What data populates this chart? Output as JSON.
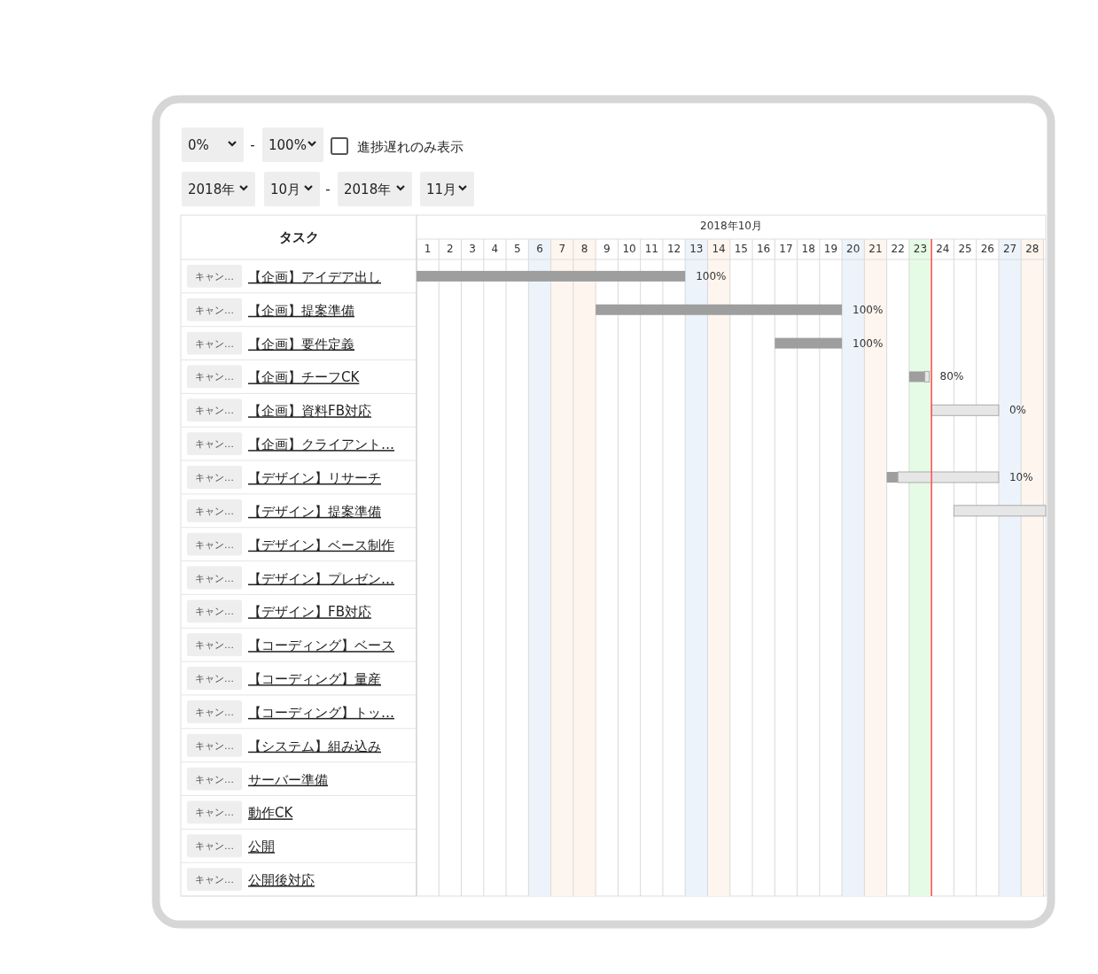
{
  "chart_data": {
    "type": "bar",
    "orientation": "horizontal",
    "ylabel": "タスク",
    "xlabel": "2018年10月",
    "categories": [
      "【企画】アイデア出し",
      "【企画】提案準備",
      "【企画】要件定義",
      "【企画】チーフCK",
      "【企画】資料FB対応",
      "【企画】クライアント…",
      "【デザイン】リサーチ",
      "【デザイン】提案準備",
      "【デザイン】ベース制作",
      "【デザイン】プレゼン…",
      "【デザイン】FB対応",
      "【コーディング】ベース",
      "【コーディング】量産",
      "【コーディング】トッ…",
      "【システム】組み込み",
      "サーバー準備",
      "動作CK",
      "公開",
      "公開後対応"
    ],
    "series": [
      {
        "color": "#9e9e9e",
        "base": [
          0.5,
          8.5,
          16.5,
          22.5,
          null,
          null,
          21.5,
          null,
          null,
          null,
          null,
          null,
          null,
          null,
          null,
          null,
          null,
          null,
          null
        ],
        "values": [
          12,
          11,
          3,
          0.7,
          null,
          null,
          0.5,
          null,
          null,
          null,
          null,
          null,
          null,
          null,
          null,
          null,
          null,
          null,
          null
        ]
      },
      {
        "color": "#e6e6e6",
        "base": [
          null,
          null,
          null,
          23.2,
          23.5,
          null,
          22,
          24.5,
          null,
          null,
          null,
          null,
          null,
          null,
          null,
          null,
          null,
          null,
          null
        ],
        "values": [
          null,
          null,
          null,
          0.2,
          3,
          null,
          4.5,
          4.1,
          null,
          null,
          null,
          null,
          null,
          null,
          null,
          null,
          null,
          null,
          null
        ]
      }
    ],
    "xlim": [
      0.5,
      28.6
    ],
    "xticks": [
      1,
      2,
      3,
      4,
      5,
      6,
      7,
      8,
      9,
      10,
      11,
      12,
      13,
      14,
      15,
      16,
      17,
      18,
      19,
      20,
      21,
      22,
      23,
      24,
      25,
      26,
      27,
      28
    ],
    "grid": "x",
    "bands": [
      {
        "axis": "x",
        "from": 5.5,
        "to": 6.5,
        "color": "#edf3fb"
      },
      {
        "axis": "x",
        "from": 6.5,
        "to": 8.5,
        "color": "#fff5ef"
      },
      {
        "axis": "x",
        "from": 12.5,
        "to": 13.5,
        "color": "#edf3fb"
      },
      {
        "axis": "x",
        "from": 13.5,
        "to": 14.5,
        "color": "#fff5ef"
      },
      {
        "axis": "x",
        "from": 19.5,
        "to": 20.5,
        "color": "#edf3fb"
      },
      {
        "axis": "x",
        "from": 20.5,
        "to": 21.5,
        "color": "#fff5ef"
      },
      {
        "axis": "x",
        "from": 22.5,
        "to": 23.5,
        "color": "#e6fbe6"
      },
      {
        "axis": "x",
        "from": 26.5,
        "to": 27.5,
        "color": "#edf3fb"
      },
      {
        "axis": "x",
        "from": 27.5,
        "to": 28.5,
        "color": "#fff5ef"
      }
    ],
    "ref_lines": [
      {
        "axis": "x",
        "value": 23.5,
        "color": "#ff4d4d"
      }
    ],
    "annotations": [
      "0%",
      "-",
      "100%",
      "進捗遅れのみ表示",
      "2018年",
      "10月",
      "-",
      "2018年",
      "11月",
      "キャン…",
      {
        "text": "100%",
        "x": 12.5,
        "y": "【企画】アイデア出し"
      },
      {
        "text": "100%",
        "x": 19.5,
        "y": "【企画】提案準備"
      },
      {
        "text": "100%",
        "x": 19.5,
        "y": "【企画】要件定義"
      },
      {
        "text": "80%",
        "x": 23.4,
        "y": "【企画】チーフCK"
      },
      {
        "text": "0%",
        "x": 26.5,
        "y": "【企画】資料FB対応"
      },
      {
        "text": "10%",
        "x": 26.5,
        "y": "【デザイン】リサーチ"
      }
    ]
  }
}
